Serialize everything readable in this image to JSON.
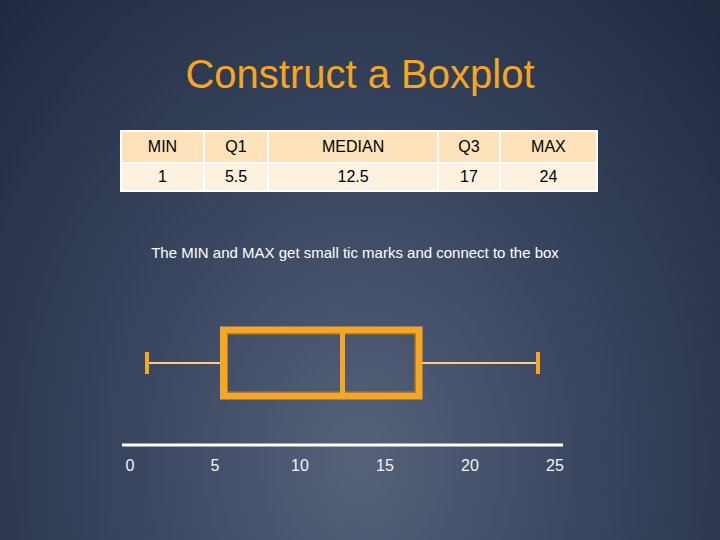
{
  "chart_data": {
    "type": "box",
    "title": "Construct a Boxplot",
    "table_header": [
      "MIN",
      "Q1",
      "MEDIAN",
      "Q3",
      "MAX"
    ],
    "box": {
      "min": 1,
      "q1": 5.5,
      "median": 12.5,
      "q3": 17,
      "max": 24
    },
    "annotations": [
      "The MIN and MAX get small tic marks and connect to the box"
    ],
    "orientation": "horizontal",
    "color": "#f5a623",
    "xlim": [
      0,
      25
    ],
    "xticks": [
      0,
      5,
      10,
      15,
      20,
      25
    ]
  }
}
